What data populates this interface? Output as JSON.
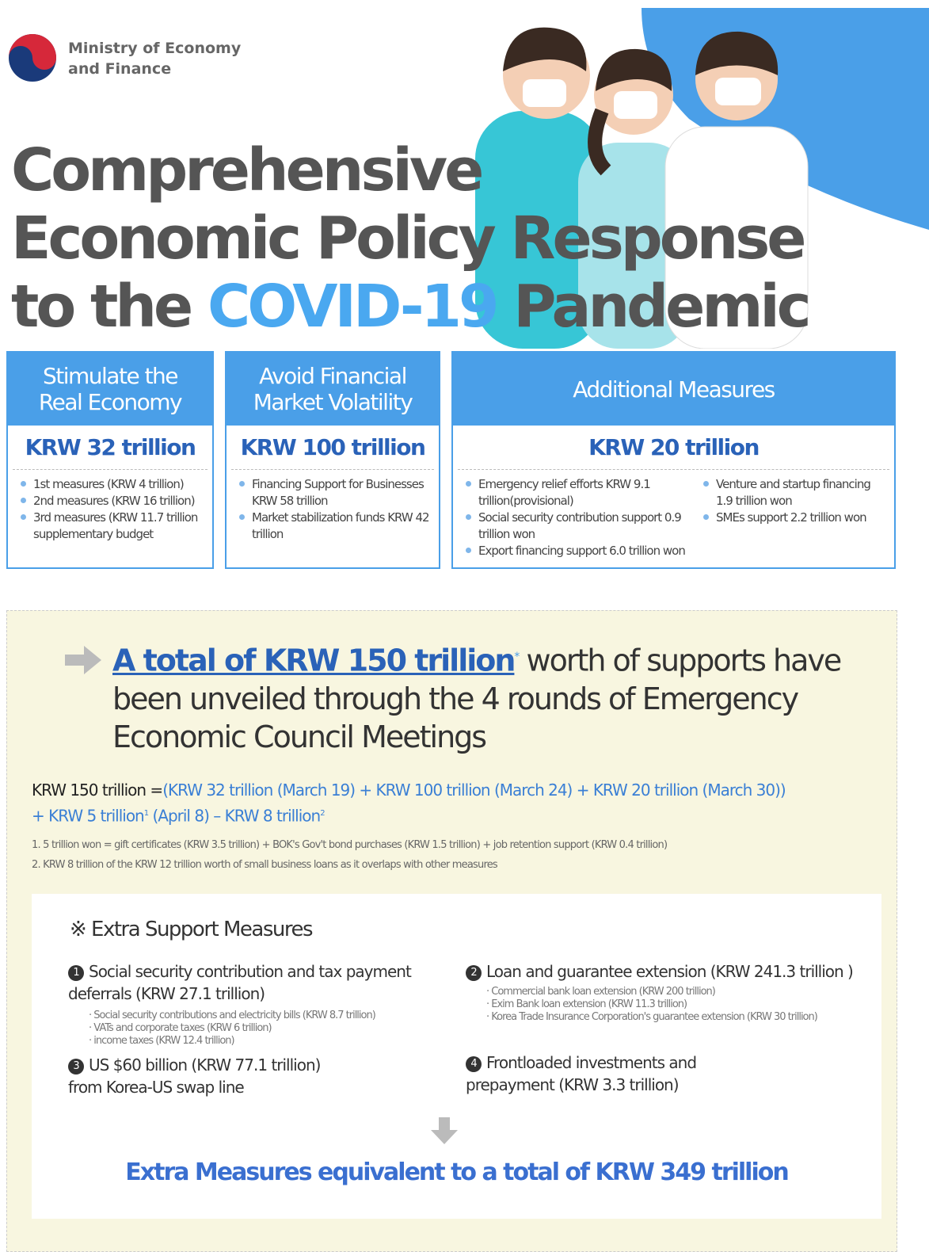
{
  "header": {
    "ministry": [
      "Ministry of Economy",
      "and Finance"
    ],
    "title": {
      "line1": "Comprehensive",
      "line2": "Economic Policy Response",
      "line3_start": "to the",
      "line3_highlight": "COVID-19",
      "line3_end": "Pandemic"
    }
  },
  "columns": [
    {
      "heading": [
        "Stimulate the",
        "Real Economy"
      ],
      "amount": "KRW 32 trillion",
      "items": [
        "1st measures (KRW 4 trillion)",
        "2nd measures (KRW 16 trillion)",
        "3rd measures (KRW 11.7 trillion supplementary budget"
      ]
    },
    {
      "heading": [
        "Avoid Financial",
        "Market Volatility"
      ],
      "amount": "KRW 100 trillion",
      "items": [
        "Financing Support for Businesses KRW 58 trillion",
        "Market stabilization funds KRW 42 trillion"
      ]
    },
    {
      "heading": [
        "Additional Measures"
      ],
      "amount": "KRW 20 trillion",
      "items": [
        "Emergency relief efforts KRW 9.1 trillion(provisional)",
        "Social security contribution support 0.9 trillion won",
        "Export financing support 6.0 trillion won"
      ],
      "items_right": [
        "Venture and startup financing 1.9 trillion won",
        "SMEs support 2.2 trillion won"
      ]
    }
  ],
  "summary": {
    "headline_highlight": "A total of KRW 150 trillion",
    "headline_mark": "*",
    "headline_rest": "worth of supports have been unveiled through the 4 rounds of Emergency Economic Council Meetings",
    "equation": {
      "lhs": "KRW 150 trillion =",
      "part1": "(KRW 32 trillion (March 19) + KRW 100 trillion (March 24) + KRW 20 trillion (March 30)) + KRW 5 trillion",
      "note1": "1",
      "part2": "(April 8) – KRW 8 trillion",
      "note2": "2"
    },
    "footnotes": [
      "1. 5 trillion won = gift certificates (KRW 3.5 trillion) + BOK's Gov't bond purchases (KRW 1.5 trillion) + job retention support (KRW 0.4 trillion)",
      "2. KRW 8 trillion of the KRW 12 trillion worth of small business loans as it overlaps with other measures"
    ]
  },
  "extra": {
    "title": "※ Extra Support Measures",
    "items": [
      {
        "num": "1",
        "title": "Social security contribution and tax payment deferrals (KRW 27.1 trillion)",
        "details": [
          "Social security contributions and electricity bills (KRW 8.7 trillion)",
          "VATs and corporate taxes (KRW 6 trillion)",
          "income taxes (KRW 12.4 trillion)"
        ]
      },
      {
        "num": "2",
        "title": "Loan and guarantee extension (KRW 241.3 trillion )",
        "details": [
          "Commercial bank loan extension (KRW 200 trillion)",
          "Exim Bank loan extension (KRW 11.3 trillion)",
          "Korea Trade Insurance Corporation's guarantee extension (KRW 30 trillion)"
        ]
      },
      {
        "num": "3",
        "title": "US $60 billion (KRW 77.1 trillion) from Korea-US swap line"
      },
      {
        "num": "4",
        "title": "Frontloaded investments and prepayment (KRW 3.3 trillion)"
      }
    ],
    "conclusion": "Extra Measures equivalent to a total of KRW 349 trillion"
  }
}
